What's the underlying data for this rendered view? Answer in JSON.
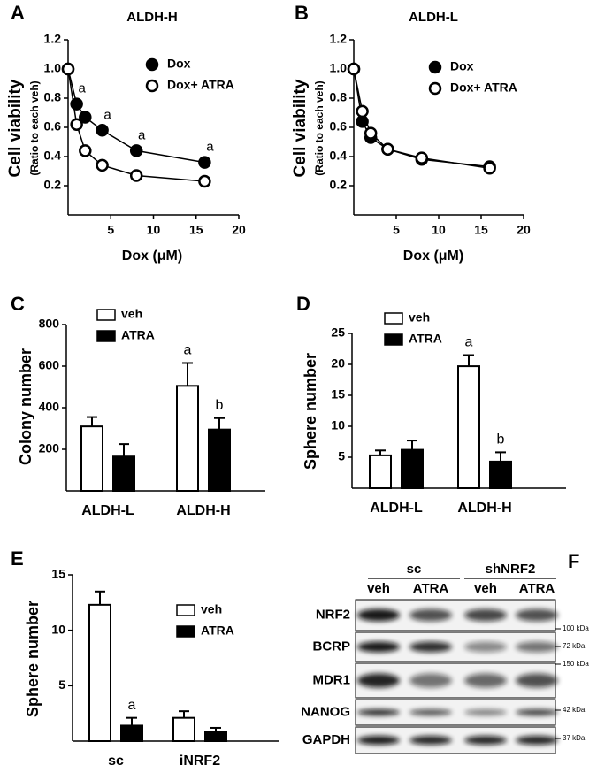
{
  "chart_data": [
    {
      "type": "line",
      "panel": "A",
      "title": "ALDH-H",
      "ylabel": "Cell viability",
      "ysublabel": "(Ratio to each veh)",
      "xlabel": "Dox (μM)",
      "x": [
        0,
        1,
        2,
        4,
        8,
        16
      ],
      "series": [
        {
          "name": "Dox",
          "color": "#000000",
          "fill": "#000000",
          "values": [
            1.0,
            0.76,
            0.67,
            0.58,
            0.44,
            0.36
          ]
        },
        {
          "name": "Dox+ ATRA",
          "color": "#000000",
          "fill": "#ffffff",
          "values": [
            1.0,
            0.62,
            0.44,
            0.34,
            0.27,
            0.23
          ]
        }
      ],
      "annotations": [
        {
          "text": "a",
          "series": "Dox",
          "x": 1
        },
        {
          "text": "a",
          "series": "Dox",
          "x": 4
        },
        {
          "text": "a",
          "series": "Dox",
          "x": 8
        },
        {
          "text": "a",
          "series": "Dox",
          "x": 16
        }
      ],
      "xlim": [
        0,
        20
      ],
      "xticks": [
        5,
        10,
        15,
        20
      ],
      "ylim": [
        0,
        1.2
      ],
      "yticks": [
        0.2,
        0.4,
        0.6,
        0.8,
        {
          "value": 1,
          "label": "1.0"
        },
        1.2
      ]
    },
    {
      "type": "line",
      "panel": "B",
      "title": "ALDH-L",
      "ylabel": "Cell viability",
      "ysublabel": "(Ratio to each veh)",
      "xlabel": "Dox (μM)",
      "x": [
        0,
        1,
        2,
        4,
        8,
        16
      ],
      "series": [
        {
          "name": "Dox",
          "color": "#000000",
          "fill": "#000000",
          "values": [
            1.0,
            0.64,
            0.53,
            0.45,
            0.38,
            0.33
          ]
        },
        {
          "name": "Dox+ ATRA",
          "color": "#000000",
          "fill": "#ffffff",
          "values": [
            1.0,
            0.71,
            0.56,
            0.45,
            0.39,
            0.32
          ]
        }
      ],
      "xlim": [
        0,
        20
      ],
      "xticks": [
        5,
        10,
        15,
        20
      ],
      "ylim": [
        0,
        1.2
      ],
      "yticks": [
        0.2,
        0.4,
        0.6,
        0.8,
        {
          "value": 1,
          "label": "1.0"
        },
        1.2
      ]
    },
    {
      "type": "bar",
      "panel": "C",
      "ylabel": "Colony number",
      "categories": [
        "ALDH-L",
        "ALDH-H"
      ],
      "series": [
        {
          "name": "veh",
          "color": "#ffffff",
          "values": [
            310,
            505
          ],
          "errors": [
            45,
            110
          ]
        },
        {
          "name": "ATRA",
          "color": "#000000",
          "values": [
            165,
            295
          ],
          "errors": [
            60,
            55
          ]
        }
      ],
      "annotations": [
        {
          "text": "a",
          "series": "veh",
          "category": "ALDH-H"
        },
        {
          "text": "b",
          "series": "ATRA",
          "category": "ALDH-H"
        }
      ],
      "ylim": [
        0,
        800
      ],
      "yticks": [
        200,
        400,
        600,
        800
      ]
    },
    {
      "type": "bar",
      "panel": "D",
      "ylabel": "Sphere number",
      "categories": [
        "ALDH-L",
        "ALDH-H"
      ],
      "series": [
        {
          "name": "veh",
          "color": "#ffffff",
          "values": [
            5.3,
            19.7
          ],
          "errors": [
            0.8,
            1.8
          ]
        },
        {
          "name": "ATRA",
          "color": "#000000",
          "values": [
            6.2,
            4.3
          ],
          "errors": [
            1.5,
            1.5
          ]
        }
      ],
      "annotations": [
        {
          "text": "a",
          "series": "veh",
          "category": "ALDH-H"
        },
        {
          "text": "b",
          "series": "ATRA",
          "category": "ALDH-H"
        }
      ],
      "ylim": [
        0,
        25
      ],
      "yticks": [
        5,
        10,
        15,
        20,
        25
      ]
    },
    {
      "type": "bar",
      "panel": "E",
      "ylabel": "Sphere number",
      "categories": [
        "sc",
        "iNRF2"
      ],
      "series": [
        {
          "name": "veh",
          "color": "#ffffff",
          "values": [
            12.3,
            2.1
          ],
          "errors": [
            1.2,
            0.6
          ]
        },
        {
          "name": "ATRA",
          "color": "#000000",
          "values": [
            1.4,
            0.8
          ],
          "errors": [
            0.7,
            0.4
          ]
        }
      ],
      "annotations": [
        {
          "text": "a",
          "series": "ATRA",
          "category": "sc"
        }
      ],
      "ylim": [
        0,
        15
      ],
      "yticks": [
        5,
        10,
        15
      ]
    }
  ],
  "blot": {
    "panel": "F",
    "groups": [
      "sc",
      "shNRF2"
    ],
    "lanes": [
      "veh",
      "ATRA",
      "veh",
      "ATRA"
    ],
    "rows": [
      {
        "protein": "NRF2",
        "marker": "100 kDa"
      },
      {
        "protein": "BCRP",
        "marker": "72 kDa"
      },
      {
        "protein": "MDR1",
        "marker": "150 kDa"
      },
      {
        "protein": "NANOG",
        "marker": "42 kDa"
      },
      {
        "protein": "GAPDH",
        "marker": "37 kDa"
      }
    ]
  }
}
